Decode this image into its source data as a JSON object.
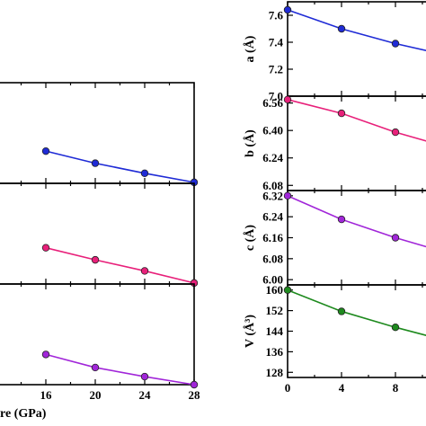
{
  "figure_colors": {
    "axis": "#000000"
  },
  "chart_data": [
    {
      "type": "line",
      "panel": "left-top",
      "x": [
        16,
        20,
        24,
        28
      ],
      "xlim": [
        12,
        28
      ],
      "ylim": [
        0,
        1
      ],
      "series": [
        {
          "values": [
            0.32,
            0.2,
            0.1,
            0.01
          ],
          "color": "#1f2bd6"
        }
      ],
      "xticks": [],
      "yticks": [],
      "xlabel": "",
      "ylabel": ""
    },
    {
      "type": "line",
      "panel": "left-middle",
      "x": [
        16,
        20,
        24,
        28
      ],
      "xlim": [
        12,
        28
      ],
      "ylim": [
        0,
        1
      ],
      "series": [
        {
          "values": [
            0.36,
            0.24,
            0.13,
            0.01
          ],
          "color": "#e8207a"
        }
      ],
      "xticks": [],
      "yticks": [],
      "xlabel": "",
      "ylabel": ""
    },
    {
      "type": "line",
      "panel": "left-bottom",
      "x": [
        16,
        20,
        24,
        28
      ],
      "xlim": [
        12,
        28
      ],
      "ylim": [
        0,
        1
      ],
      "series": [
        {
          "values": [
            0.3,
            0.17,
            0.08,
            0.0
          ],
          "color": "#a126d9"
        }
      ],
      "xticks": [
        "16",
        "20",
        "24",
        "28"
      ],
      "yticks": [],
      "xlabel": "re (GPa)",
      "ylabel": ""
    },
    {
      "type": "line",
      "panel": "right-a",
      "x": [
        0,
        4,
        8,
        12
      ],
      "xlim": [
        0,
        12
      ],
      "ylim": [
        7.0,
        7.7
      ],
      "series": [
        {
          "values": [
            7.64,
            7.5,
            7.39,
            7.3
          ],
          "color": "#1f2bd6"
        }
      ],
      "yticks": [
        "7.0",
        "7.2",
        "7.4",
        "7.6"
      ],
      "xticks": [],
      "ylabel": "a (Å)",
      "xlabel": ""
    },
    {
      "type": "line",
      "panel": "right-b",
      "x": [
        0,
        4,
        8,
        12
      ],
      "xlim": [
        0,
        12
      ],
      "ylim": [
        6.05,
        6.6
      ],
      "series": [
        {
          "values": [
            6.58,
            6.5,
            6.39,
            6.3
          ],
          "color": "#e8207a"
        }
      ],
      "yticks": [
        "6.08",
        "6.24",
        "6.40",
        "6.56"
      ],
      "xticks": [],
      "ylabel": "b (Å)",
      "xlabel": ""
    },
    {
      "type": "line",
      "panel": "right-c",
      "x": [
        0,
        4,
        8,
        12
      ],
      "xlim": [
        0,
        12
      ],
      "ylim": [
        5.98,
        6.34
      ],
      "series": [
        {
          "values": [
            6.32,
            6.23,
            6.16,
            6.1
          ],
          "color": "#a126d9"
        }
      ],
      "yticks": [
        "6.00",
        "6.08",
        "6.16",
        "6.24",
        "6.32"
      ],
      "xticks": [],
      "ylabel": "c (Å)",
      "xlabel": ""
    },
    {
      "type": "line",
      "panel": "right-v",
      "x": [
        0,
        4,
        8,
        12
      ],
      "xlim": [
        0,
        12
      ],
      "ylim": [
        126,
        162
      ],
      "series": [
        {
          "values": [
            160,
            151.7,
            145.5,
            140
          ],
          "color": "#1e8a1e"
        }
      ],
      "yticks": [
        "128",
        "136",
        "144",
        "152",
        "160"
      ],
      "xticks": [
        "0",
        "4",
        "8"
      ],
      "ylabel": "V (Å³)",
      "xlabel": ""
    }
  ]
}
